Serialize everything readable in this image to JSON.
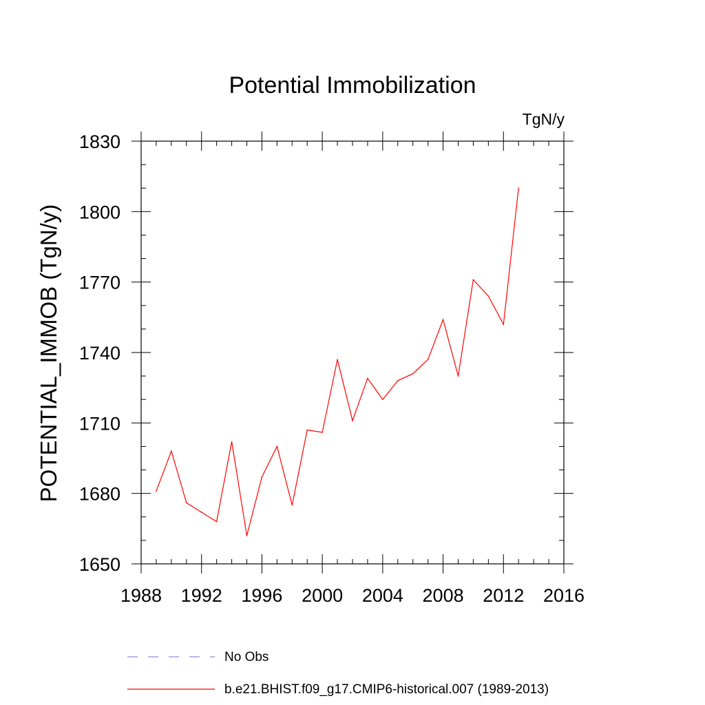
{
  "chart_data": {
    "type": "line",
    "title": "Potential Immobilization",
    "units_label": "TgN/y",
    "ylabel": "POTENTIAL_IMMOB  (TgN/y)",
    "xlabel": "",
    "xlim": [
      1988,
      2016
    ],
    "ylim": [
      1650,
      1830
    ],
    "x_ticks": [
      1988,
      1992,
      1996,
      2000,
      2004,
      2008,
      2012,
      2016
    ],
    "y_ticks": [
      1650,
      1680,
      1710,
      1740,
      1770,
      1800,
      1830
    ],
    "x_minor_step": 1,
    "y_minor_step": 10,
    "grid": false,
    "legend_position": "bottom",
    "series": [
      {
        "name": "b.e21.BHIST.f09_g17.CMIP6-historical.007 (1989-2013)",
        "color": "#ff0000",
        "style": "solid",
        "x": [
          1989,
          1990,
          1991,
          1992,
          1993,
          1994,
          1995,
          1996,
          1997,
          1998,
          1999,
          2000,
          2001,
          2002,
          2003,
          2004,
          2005,
          2006,
          2007,
          2008,
          2009,
          2010,
          2011,
          2012,
          2013
        ],
        "values": [
          1681,
          1698,
          1676,
          1672,
          1668,
          1702,
          1662,
          1687,
          1700,
          1675,
          1707,
          1706,
          1737,
          1711,
          1729,
          1720,
          1728,
          1731,
          1737,
          1754,
          1730,
          1771,
          1764,
          1752,
          1810
        ]
      }
    ],
    "legend": [
      {
        "label": "No Obs",
        "color": "#8c8cd9",
        "style": "dashed"
      },
      {
        "label": "b.e21.BHIST.f09_g17.CMIP6-historical.007 (1989-2013)",
        "color": "#ff0000",
        "style": "solid"
      }
    ]
  }
}
